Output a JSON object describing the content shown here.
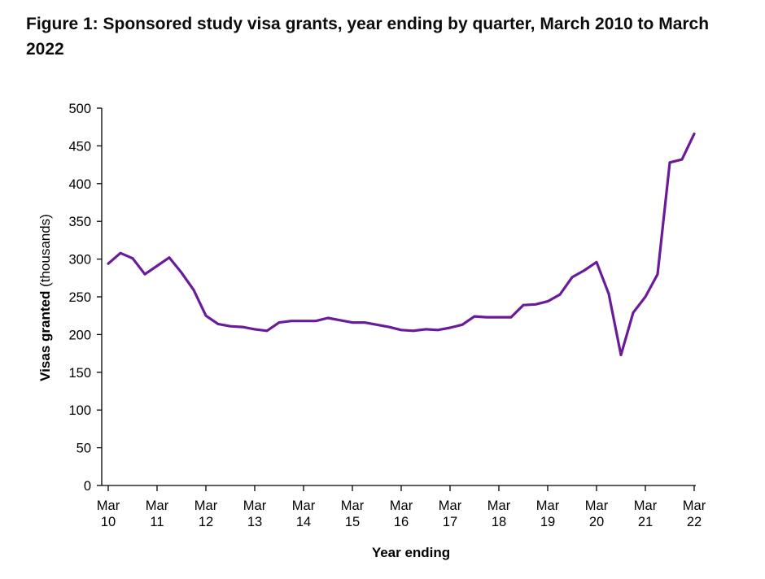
{
  "title": "Figure 1: Sponsored study visa grants, year ending by quarter, March 2010 to March 2022",
  "chart_data": {
    "type": "line",
    "title": "Figure 1: Sponsored study visa grants, year ending by quarter, March 2010 to March 2022",
    "xlabel": "Year ending",
    "ylabel_bold": "Visas granted",
    "ylabel_rest": " (thousands)",
    "ylim": [
      0,
      500
    ],
    "yticks": [
      0,
      50,
      100,
      150,
      200,
      250,
      300,
      350,
      400,
      450,
      500
    ],
    "xtick_labels": [
      [
        "Mar",
        "10"
      ],
      [
        "Mar",
        "11"
      ],
      [
        "Mar",
        "12"
      ],
      [
        "Mar",
        "13"
      ],
      [
        "Mar",
        "14"
      ],
      [
        "Mar",
        "15"
      ],
      [
        "Mar",
        "16"
      ],
      [
        "Mar",
        "17"
      ],
      [
        "Mar",
        "18"
      ],
      [
        "Mar",
        "19"
      ],
      [
        "Mar",
        "20"
      ],
      [
        "Mar",
        "21"
      ],
      [
        "Mar",
        "22"
      ]
    ],
    "line_color": "#6a1b9a",
    "grid": false,
    "legend": "none",
    "series": [
      {
        "x": [
          "Mar 10",
          "Jun 10",
          "Sep 10",
          "Dec 10",
          "Mar 11",
          "Jun 11",
          "Sep 11",
          "Dec 11",
          "Mar 12",
          "Jun 12",
          "Sep 12",
          "Dec 12",
          "Mar 13",
          "Jun 13",
          "Sep 13",
          "Dec 13",
          "Mar 14",
          "Jun 14",
          "Sep 14",
          "Dec 14",
          "Mar 15",
          "Jun 15",
          "Sep 15",
          "Dec 15",
          "Mar 16",
          "Jun 16",
          "Sep 16",
          "Dec 16",
          "Mar 17",
          "Jun 17",
          "Sep 17",
          "Dec 17",
          "Mar 18",
          "Jun 18",
          "Sep 18",
          "Dec 18",
          "Mar 19",
          "Jun 19",
          "Sep 19",
          "Dec 19",
          "Mar 20",
          "Jun 20",
          "Sep 20",
          "Dec 20",
          "Mar 21",
          "Jun 21",
          "Sep 21",
          "Dec 21",
          "Mar 22"
        ],
        "values": [
          294,
          308,
          301,
          280,
          291,
          302,
          282,
          259,
          225,
          214,
          211,
          210,
          207,
          205,
          216,
          218,
          218,
          218,
          222,
          219,
          216,
          216,
          213,
          210,
          206,
          205,
          207,
          206,
          209,
          213,
          224,
          223,
          223,
          223,
          239,
          240,
          244,
          253,
          276,
          285,
          296,
          254,
          173,
          229,
          250,
          280,
          428,
          432,
          466
        ]
      }
    ]
  }
}
